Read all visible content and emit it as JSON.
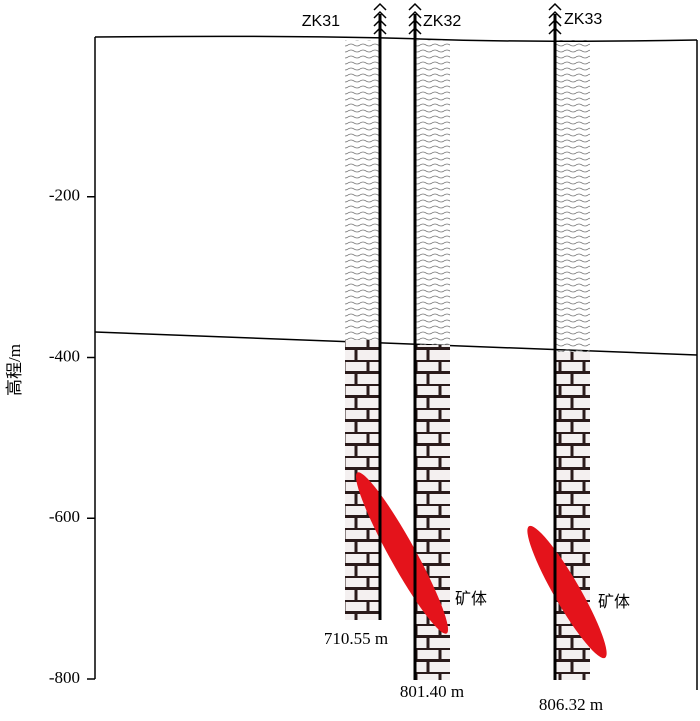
{
  "axis": {
    "label": "高程/m",
    "ylim": [
      -800,
      0
    ],
    "yticks": [
      -200,
      -400,
      -600,
      -800
    ]
  },
  "boreholes": [
    {
      "name": "ZK31",
      "depth_label": "710.55 m"
    },
    {
      "name": "ZK32",
      "depth_label": "801.40 m"
    },
    {
      "name": "ZK33",
      "depth_label": "806.32 m"
    }
  ],
  "ore_labels": [
    "矿体",
    "矿体"
  ]
}
